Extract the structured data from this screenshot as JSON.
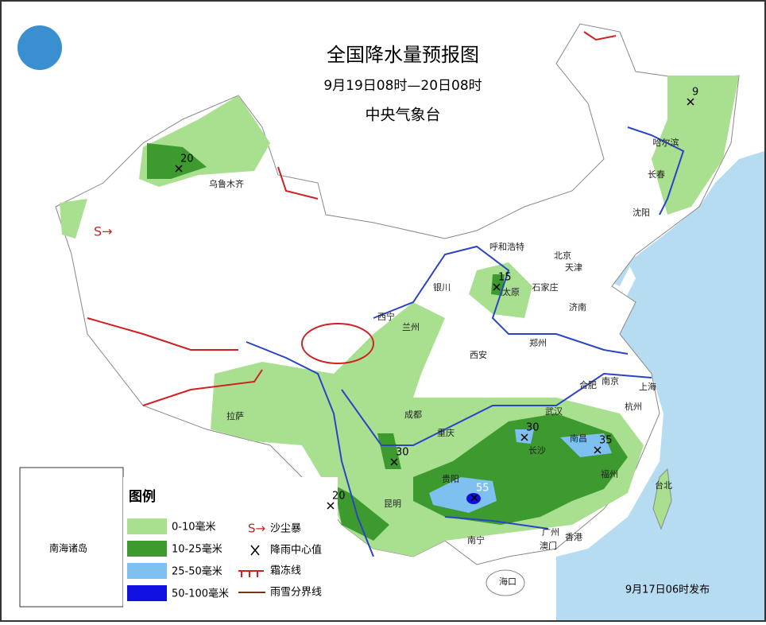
{
  "header": {
    "title": "全国降水量预报图",
    "period": "9月19日08时—20日08时",
    "issuer": "中央气象台"
  },
  "footer": {
    "issued": "9月17日06时发布"
  },
  "inset": {
    "label": "南海诸岛"
  },
  "legend": {
    "title": "图例",
    "items": [
      "0-10毫米",
      "10-25毫米",
      "25-50毫米",
      "50-100毫米",
      "沙尘暴",
      "降雨中心值",
      "霜冻线",
      "雨雪分界线"
    ]
  },
  "cities": [
    "乌鲁木齐",
    "哈尔滨",
    "长春",
    "沈阳",
    "呼和浩特",
    "北京",
    "天津",
    "石家庄",
    "太原",
    "济南",
    "银川",
    "西宁",
    "兰州",
    "西安",
    "郑州",
    "合肥",
    "南京",
    "上海",
    "杭州",
    "武汉",
    "南昌",
    "长沙",
    "福州",
    "台北",
    "成都",
    "重庆",
    "贵阳",
    "昆明",
    "南宁",
    "广州",
    "香港",
    "澳门",
    "海口",
    "拉萨"
  ],
  "rain_centers": [
    20,
    9,
    15,
    30,
    20,
    30,
    35,
    55
  ]
}
